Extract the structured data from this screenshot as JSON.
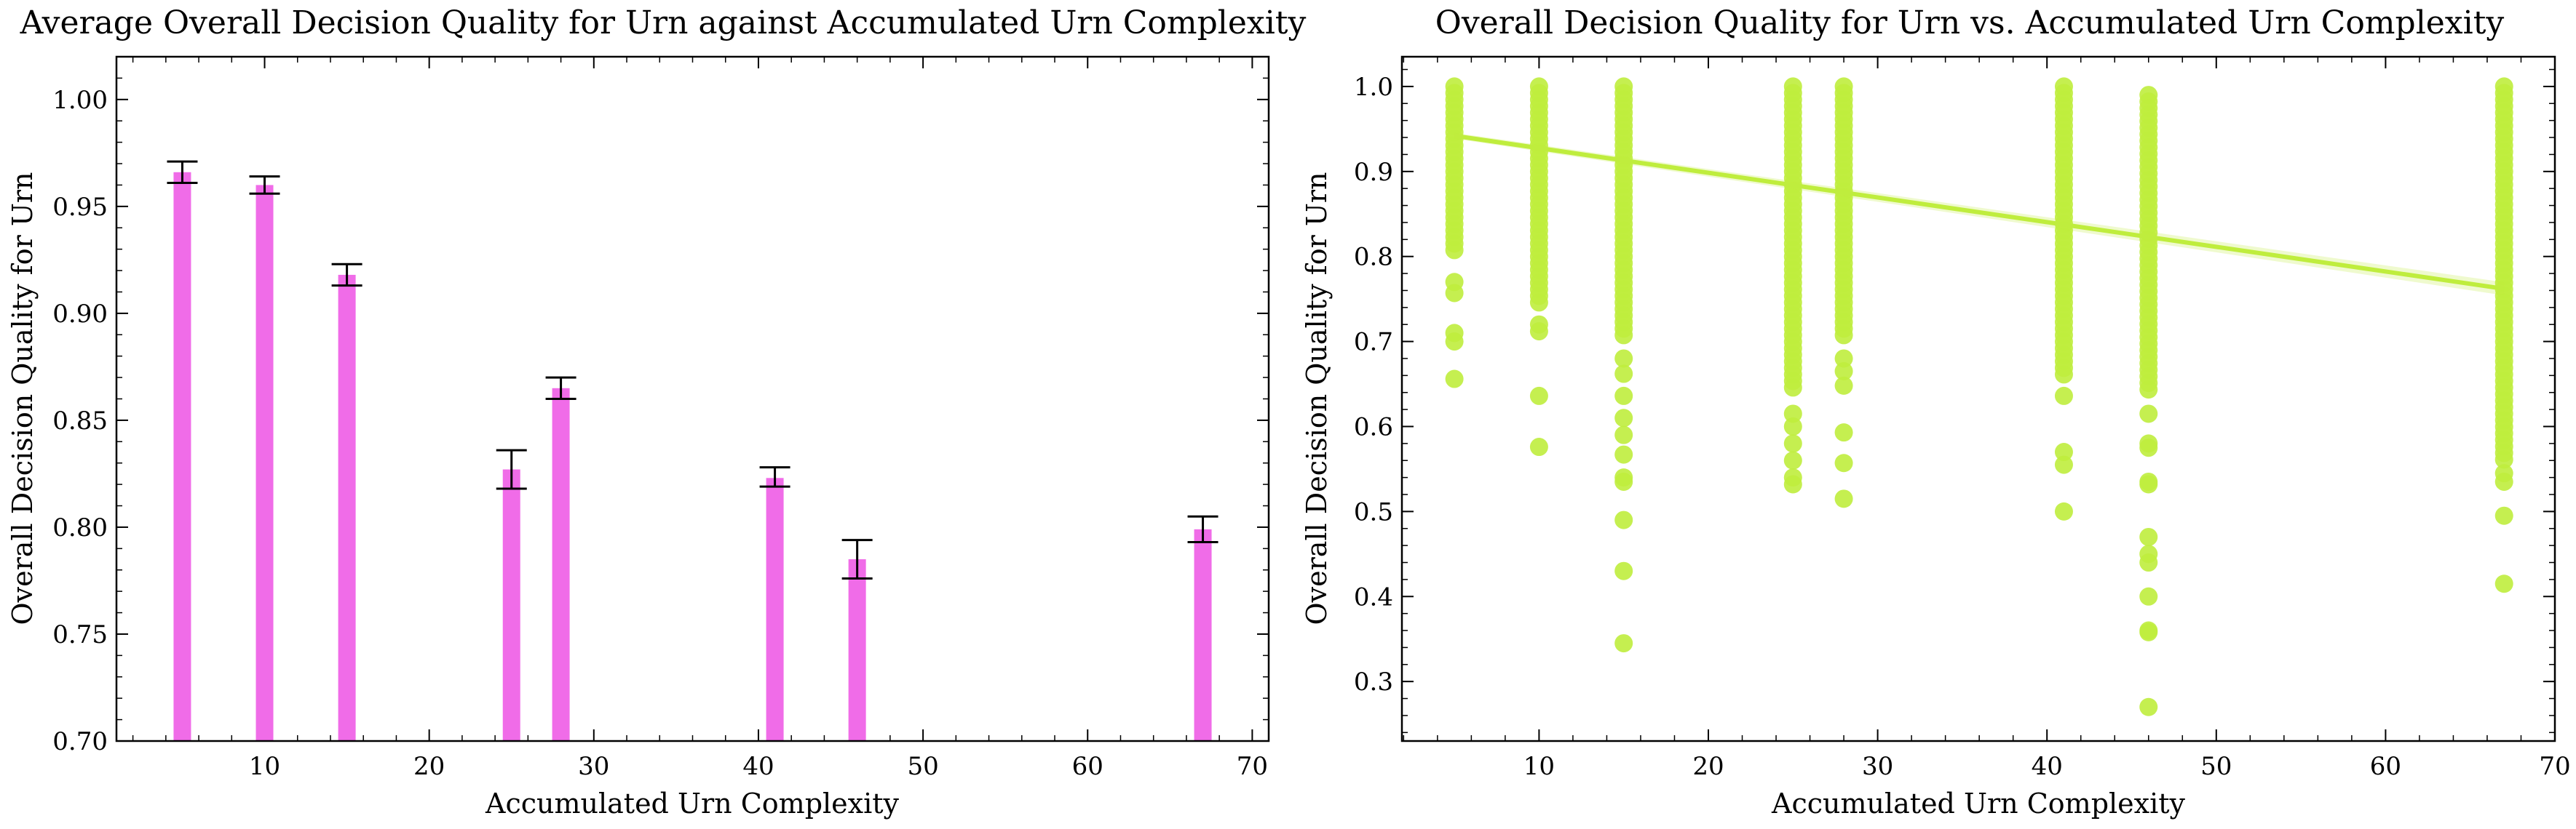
{
  "chart_data": [
    {
      "type": "bar",
      "title": "Average Overall Decision Quality for Urn against Accumulated Urn Complexity",
      "xlabel": "Accumulated Urn Complexity",
      "ylabel": "Overall Decision Quality for Urn",
      "xlim": [
        1,
        71
      ],
      "ylim": [
        0.7,
        1.02
      ],
      "xticks": [
        10,
        20,
        30,
        40,
        50,
        60,
        70
      ],
      "yticks": [
        0.7,
        0.75,
        0.8,
        0.85,
        0.9,
        0.95,
        1.0
      ],
      "xtick_labels": [
        "10",
        "20",
        "30",
        "40",
        "50",
        "60",
        "70"
      ],
      "ytick_labels": [
        "0.70",
        "0.75",
        "0.80",
        "0.85",
        "0.90",
        "0.95",
        "1.00"
      ],
      "bar_color": "#f06ce8",
      "errorbar_color": "#000000",
      "bars": [
        {
          "x": 5,
          "value": 0.966,
          "err_low": 0.961,
          "err_high": 0.971
        },
        {
          "x": 10,
          "value": 0.96,
          "err_low": 0.956,
          "err_high": 0.964
        },
        {
          "x": 15,
          "value": 0.918,
          "err_low": 0.913,
          "err_high": 0.923
        },
        {
          "x": 25,
          "value": 0.827,
          "err_low": 0.818,
          "err_high": 0.836
        },
        {
          "x": 28,
          "value": 0.865,
          "err_low": 0.86,
          "err_high": 0.87
        },
        {
          "x": 41,
          "value": 0.823,
          "err_low": 0.819,
          "err_high": 0.828
        },
        {
          "x": 46,
          "value": 0.785,
          "err_low": 0.776,
          "err_high": 0.794
        },
        {
          "x": 67,
          "value": 0.799,
          "err_low": 0.793,
          "err_high": 0.805
        }
      ],
      "grid": false
    },
    {
      "type": "scatter",
      "title": "Overall Decision Quality for Urn vs. Accumulated Urn Complexity",
      "xlabel": "Accumulated Urn Complexity",
      "ylabel": "Overall Decision Quality for Urn",
      "xlim": [
        1.9,
        70
      ],
      "ylim": [
        0.23,
        1.035
      ],
      "xticks": [
        10,
        20,
        30,
        40,
        50,
        60,
        70
      ],
      "yticks": [
        0.3,
        0.4,
        0.5,
        0.6,
        0.7,
        0.8,
        0.9,
        1.0
      ],
      "xtick_labels": [
        "10",
        "20",
        "30",
        "40",
        "50",
        "60",
        "70"
      ],
      "ytick_labels": [
        "0.3",
        "0.4",
        "0.5",
        "0.6",
        "0.7",
        "0.8",
        "0.9",
        "1.0"
      ],
      "point_color": "#bfed3d",
      "regression": {
        "x1": 5,
        "y1": 0.942,
        "x2": 67,
        "y2": 0.762
      },
      "columns": [
        {
          "x": 5,
          "band": [
            0.8,
            1.0
          ],
          "outliers": [
            0.77,
            0.757,
            0.71,
            0.7,
            0.656
          ]
        },
        {
          "x": 10,
          "band": [
            0.74,
            1.0
          ],
          "outliers": [
            0.72,
            0.712,
            0.636,
            0.576
          ]
        },
        {
          "x": 15,
          "band": [
            0.7,
            1.0
          ],
          "outliers": [
            0.68,
            0.662,
            0.636,
            0.61,
            0.59,
            0.567,
            0.54,
            0.535,
            0.49,
            0.43,
            0.345
          ]
        },
        {
          "x": 25,
          "band": [
            0.64,
            1.0
          ],
          "outliers": [
            0.615,
            0.6,
            0.58,
            0.56,
            0.54,
            0.532
          ]
        },
        {
          "x": 28,
          "band": [
            0.7,
            1.0
          ],
          "outliers": [
            0.68,
            0.665,
            0.648,
            0.593,
            0.557,
            0.515
          ]
        },
        {
          "x": 41,
          "band": [
            0.66,
            1.0
          ],
          "outliers": [
            0.636,
            0.57,
            0.555,
            0.5
          ]
        },
        {
          "x": 46,
          "band": [
            0.64,
            0.99
          ],
          "outliers": [
            0.615,
            0.58,
            0.575,
            0.535,
            0.532,
            0.47,
            0.45,
            0.44,
            0.4,
            0.36,
            0.358,
            0.27
          ]
        },
        {
          "x": 67,
          "band": [
            0.56,
            1.0
          ],
          "outliers": [
            0.545,
            0.535,
            0.495,
            0.415
          ]
        }
      ],
      "grid": false
    }
  ]
}
